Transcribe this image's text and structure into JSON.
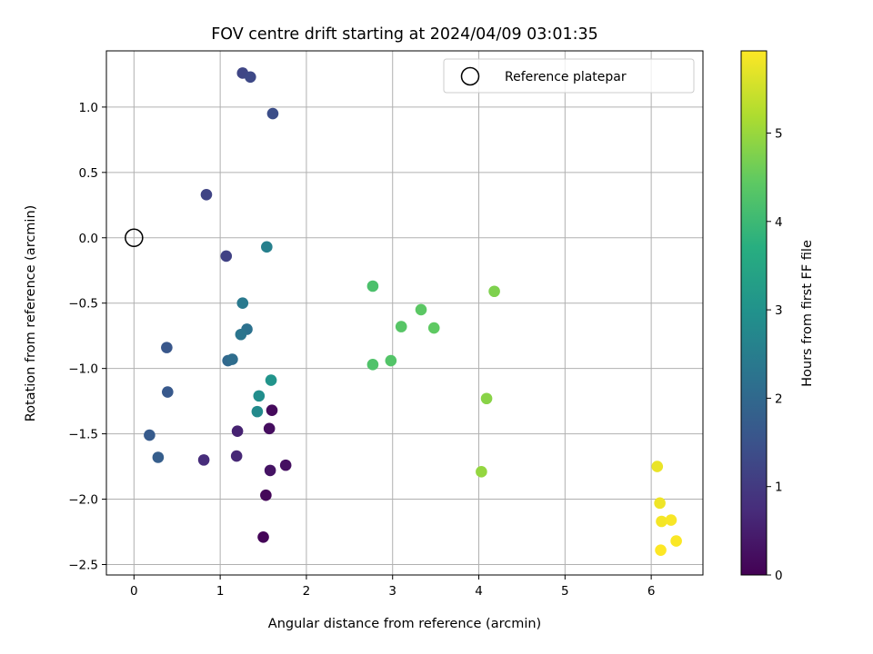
{
  "chart_data": {
    "type": "scatter",
    "title": "FOV centre drift starting at 2024/04/09 03:01:35",
    "xlabel": "Angular distance from reference (arcmin)",
    "ylabel": "Rotation from reference (arcmin)",
    "xlim": [
      -0.32,
      6.6
    ],
    "ylim": [
      -2.58,
      1.43
    ],
    "xticks": [
      0,
      1,
      2,
      3,
      4,
      5,
      6
    ],
    "yticks": [
      1.0,
      0.5,
      0.0,
      -0.5,
      -1.0,
      -1.5,
      -2.0,
      -2.5
    ],
    "xtick_labels": [
      "0",
      "1",
      "2",
      "3",
      "4",
      "5",
      "6"
    ],
    "ytick_labels": [
      "1.0",
      "0.5",
      "0.0",
      "−0.5",
      "−1.0",
      "−1.5",
      "−2.0",
      "−2.5"
    ],
    "grid": true,
    "legend": {
      "position": "top-right",
      "entries": [
        "Reference platepar"
      ]
    },
    "reference_point": {
      "x": 0.0,
      "y": 0.0
    },
    "colorbar": {
      "label": "Hours from first FF file",
      "colormap": "viridis",
      "range": [
        0,
        5.93
      ],
      "ticks": [
        0,
        1,
        2,
        3,
        4,
        5
      ],
      "tick_labels": [
        "0",
        "1",
        "2",
        "3",
        "4",
        "5"
      ]
    },
    "points": [
      {
        "x": 1.5,
        "y": -2.29,
        "hours": 0.05
      },
      {
        "x": 1.53,
        "y": -1.97,
        "hours": 0.1
      },
      {
        "x": 1.6,
        "y": -1.32,
        "hours": 0.15
      },
      {
        "x": 1.57,
        "y": -1.46,
        "hours": 0.2
      },
      {
        "x": 1.76,
        "y": -1.74,
        "hours": 0.25
      },
      {
        "x": 1.58,
        "y": -1.78,
        "hours": 0.3
      },
      {
        "x": 1.2,
        "y": -1.48,
        "hours": 0.55
      },
      {
        "x": 1.19,
        "y": -1.67,
        "hours": 0.65
      },
      {
        "x": 0.81,
        "y": -1.7,
        "hours": 0.75
      },
      {
        "x": 1.07,
        "y": -0.14,
        "hours": 1.15
      },
      {
        "x": 0.84,
        "y": 0.33,
        "hours": 1.2
      },
      {
        "x": 1.26,
        "y": 1.26,
        "hours": 1.25
      },
      {
        "x": 1.35,
        "y": 1.23,
        "hours": 1.3
      },
      {
        "x": 1.61,
        "y": 0.95,
        "hours": 1.4
      },
      {
        "x": 0.38,
        "y": -0.84,
        "hours": 1.6
      },
      {
        "x": 0.39,
        "y": -1.18,
        "hours": 1.65
      },
      {
        "x": 0.18,
        "y": -1.51,
        "hours": 1.7
      },
      {
        "x": 0.28,
        "y": -1.68,
        "hours": 1.75
      },
      {
        "x": 1.09,
        "y": -0.94,
        "hours": 2.0
      },
      {
        "x": 1.14,
        "y": -0.93,
        "hours": 2.1
      },
      {
        "x": 1.31,
        "y": -0.7,
        "hours": 2.2
      },
      {
        "x": 1.24,
        "y": -0.74,
        "hours": 2.3
      },
      {
        "x": 1.26,
        "y": -0.5,
        "hours": 2.4
      },
      {
        "x": 1.54,
        "y": -0.07,
        "hours": 2.55
      },
      {
        "x": 1.43,
        "y": -1.33,
        "hours": 2.8
      },
      {
        "x": 1.45,
        "y": -1.21,
        "hours": 2.9
      },
      {
        "x": 1.59,
        "y": -1.09,
        "hours": 3.05
      },
      {
        "x": 2.77,
        "y": -0.37,
        "hours": 4.2
      },
      {
        "x": 2.77,
        "y": -0.97,
        "hours": 4.25
      },
      {
        "x": 2.98,
        "y": -0.94,
        "hours": 4.3
      },
      {
        "x": 3.1,
        "y": -0.68,
        "hours": 4.35
      },
      {
        "x": 3.33,
        "y": -0.55,
        "hours": 4.4
      },
      {
        "x": 3.48,
        "y": -0.69,
        "hours": 4.45
      },
      {
        "x": 4.18,
        "y": -0.41,
        "hours": 4.75
      },
      {
        "x": 4.09,
        "y": -1.23,
        "hours": 4.85
      },
      {
        "x": 4.03,
        "y": -1.79,
        "hours": 4.95
      },
      {
        "x": 6.07,
        "y": -1.75,
        "hours": 5.75
      },
      {
        "x": 6.1,
        "y": -2.03,
        "hours": 5.8
      },
      {
        "x": 6.12,
        "y": -2.17,
        "hours": 5.85
      },
      {
        "x": 6.23,
        "y": -2.16,
        "hours": 5.88
      },
      {
        "x": 6.29,
        "y": -2.32,
        "hours": 5.9
      },
      {
        "x": 6.11,
        "y": -2.39,
        "hours": 5.93
      }
    ]
  }
}
